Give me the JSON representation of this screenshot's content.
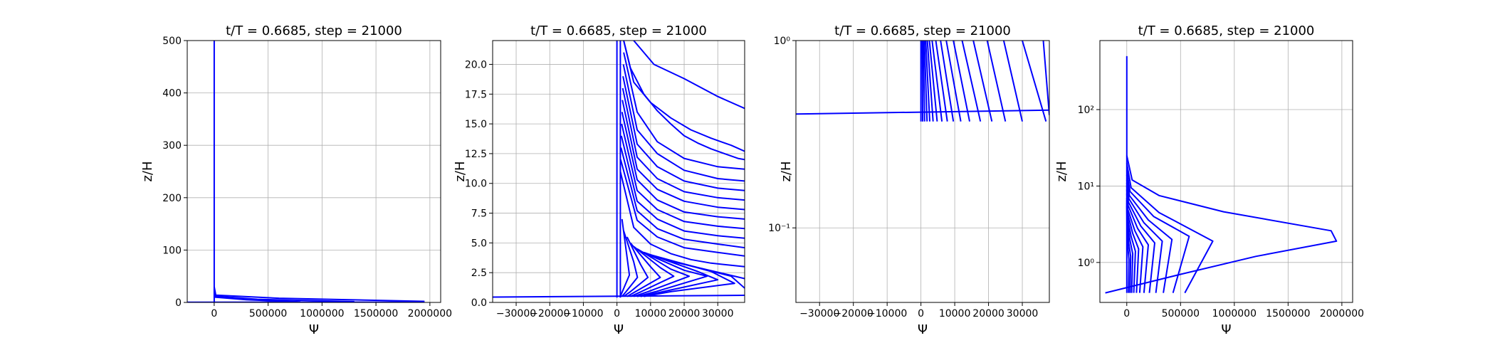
{
  "chart_data": [
    {
      "type": "line",
      "title": "t/T = 0.6685, step = 21000",
      "xlabel": "Ψ",
      "ylabel": "z/H",
      "xlim": [
        -250000,
        2100000
      ],
      "ylim": [
        0,
        500
      ],
      "yscale": "linear",
      "grid": true,
      "xticks": [
        0,
        500000,
        1000000,
        1500000,
        2000000
      ],
      "xtick_labels": [
        "0",
        "500000",
        "1000000",
        "1500000",
        "2000000"
      ],
      "yticks": [
        0,
        100,
        200,
        300,
        400,
        500
      ],
      "ytick_labels": [
        "0",
        "100",
        "200",
        "300",
        "400",
        "500"
      ],
      "color": "#0000ff",
      "series": [
        {
          "x": [
            0,
            0
          ],
          "y": [
            0.5,
            500
          ]
        },
        {
          "x": [
            -250000,
            1950000
          ],
          "y": [
            0.4,
            0.5
          ]
        },
        {
          "x": [
            0,
            15000,
            600000,
            1950000
          ],
          "y": [
            30,
            14,
            8,
            2
          ]
        },
        {
          "x": [
            0,
            10000,
            400000,
            1300000
          ],
          "y": [
            25,
            12,
            6,
            1.5
          ]
        },
        {
          "x": [
            0,
            8000,
            300000,
            800000
          ],
          "y": [
            20,
            10,
            5,
            1
          ]
        }
      ]
    },
    {
      "type": "line",
      "title": "t/T = 0.6685, step = 21000",
      "xlabel": "Ψ",
      "ylabel": "z/H",
      "xlim": [
        -37000,
        38000
      ],
      "ylim": [
        0,
        22
      ],
      "yscale": "linear",
      "grid": true,
      "xticks": [
        -30000,
        -20000,
        -10000,
        0,
        10000,
        20000,
        30000
      ],
      "xtick_labels": [
        "−30000",
        "−20000",
        "−10000",
        "0",
        "10000",
        "20000",
        "30000"
      ],
      "yticks": [
        0,
        2.5,
        5,
        7.5,
        10,
        12.5,
        15,
        17.5,
        20
      ],
      "ytick_labels": [
        "0.0",
        "2.5",
        "5.0",
        "7.5",
        "10.0",
        "12.5",
        "15.0",
        "17.5",
        "20.0"
      ],
      "color": "#0000ff",
      "series": [
        {
          "x": [
            0,
            0
          ],
          "y": [
            0.4,
            22
          ]
        },
        {
          "x": [
            -37000,
            38000
          ],
          "y": [
            0.45,
            0.6
          ]
        },
        {
          "x": [
            1000,
            1000
          ],
          "y": [
            0.4,
            22
          ]
        },
        {
          "x": [
            5000,
            11000,
            20000,
            30000,
            38000
          ],
          "y": [
            22,
            20,
            18.8,
            17.3,
            16.3
          ]
        },
        {
          "x": [
            2000,
            5000,
            10000,
            16000,
            22000,
            28000,
            34000,
            38000
          ],
          "y": [
            22,
            18.5,
            16.8,
            15.5,
            14.5,
            13.8,
            13.2,
            12.7
          ]
        },
        {
          "x": [
            2000,
            4000,
            8000,
            12000,
            16000,
            20000,
            24000,
            28000,
            32000,
            36000,
            38000
          ],
          "y": [
            22,
            19.7,
            17.5,
            16.1,
            15.0,
            14.0,
            13.4,
            12.9,
            12.5,
            12.1,
            12.0
          ]
        },
        {
          "x": [
            2000,
            6000,
            12000,
            20000,
            30000,
            38000
          ],
          "y": [
            21,
            16,
            13.5,
            12.1,
            11.4,
            11.2
          ]
        },
        {
          "x": [
            1900,
            6000,
            12000,
            20000,
            30000,
            38000
          ],
          "y": [
            20,
            14.5,
            12.5,
            11.1,
            10.4,
            10.2
          ]
        },
        {
          "x": [
            1800,
            6000,
            12000,
            20000,
            30000,
            38000
          ],
          "y": [
            19,
            13.3,
            11.4,
            10.2,
            9.6,
            9.4
          ]
        },
        {
          "x": [
            1700,
            6000,
            12000,
            20000,
            30000,
            38000
          ],
          "y": [
            18,
            12.2,
            10.4,
            9.3,
            8.8,
            8.6
          ]
        },
        {
          "x": [
            1600,
            6000,
            12000,
            20000,
            30000,
            38000
          ],
          "y": [
            17,
            11.2,
            9.5,
            8.5,
            8.0,
            7.8
          ]
        },
        {
          "x": [
            1500,
            6000,
            12000,
            20000,
            30000,
            38000
          ],
          "y": [
            16,
            10.3,
            8.6,
            7.6,
            7.2,
            7.0
          ]
        },
        {
          "x": [
            1400,
            6000,
            12000,
            20000,
            30000,
            38000
          ],
          "y": [
            15,
            9.4,
            7.8,
            6.8,
            6.4,
            6.2
          ]
        },
        {
          "x": [
            1300,
            6000,
            12000,
            20000,
            30000,
            38000
          ],
          "y": [
            14,
            8.5,
            7.0,
            6.0,
            5.6,
            5.4
          ]
        },
        {
          "x": [
            1200,
            6000,
            12000,
            20000,
            30000,
            38000
          ],
          "y": [
            13,
            7.7,
            6.2,
            5.3,
            4.9,
            4.6
          ]
        },
        {
          "x": [
            1100,
            6000,
            12000,
            20000,
            30000,
            38000
          ],
          "y": [
            12,
            6.9,
            5.5,
            4.6,
            4.2,
            3.9
          ]
        },
        {
          "x": [
            1000,
            5000,
            10000,
            16000,
            22000,
            28000,
            38000
          ],
          "y": [
            11,
            6.3,
            4.9,
            4.1,
            3.6,
            3.3,
            3.0
          ]
        },
        {
          "x": [
            1500,
            3000,
            3700,
            1600,
            1000
          ],
          "y": [
            7,
            3.8,
            2.3,
            0.9,
            0.5
          ]
        },
        {
          "x": [
            2000,
            5000,
            6100,
            2700,
            1500
          ],
          "y": [
            6,
            3.4,
            2.1,
            0.9,
            0.5
          ]
        },
        {
          "x": [
            3000,
            7000,
            9200,
            4000,
            2000
          ],
          "y": [
            5.5,
            3.2,
            2.1,
            0.9,
            0.5
          ]
        },
        {
          "x": [
            4000,
            10000,
            12900,
            5500,
            3000
          ],
          "y": [
            5,
            3.0,
            2.1,
            0.9,
            0.5
          ]
        },
        {
          "x": [
            5000,
            13000,
            16900,
            7200,
            4000
          ],
          "y": [
            4.7,
            2.9,
            2.2,
            0.9,
            0.5
          ]
        },
        {
          "x": [
            6000,
            16000,
            21500,
            9200,
            5000
          ],
          "y": [
            4.5,
            2.8,
            2.2,
            0.9,
            0.5
          ]
        },
        {
          "x": [
            7000,
            20000,
            26800,
            11500,
            6000
          ],
          "y": [
            4.3,
            2.7,
            2.2,
            0.9,
            0.5
          ]
        },
        {
          "x": [
            8000,
            24000,
            30000,
            13700,
            7000
          ],
          "y": [
            4.2,
            2.6,
            1.9,
            0.9,
            0.5
          ]
        },
        {
          "x": [
            10000,
            28000,
            35000,
            16000,
            8000
          ],
          "y": [
            4.0,
            2.6,
            1.6,
            0.9,
            0.5
          ]
        },
        {
          "x": [
            12000,
            34000,
            38000
          ],
          "y": [
            3.8,
            2.2,
            1.2
          ]
        },
        {
          "x": [
            14000,
            38000
          ],
          "y": [
            3.6,
            2.0
          ]
        }
      ]
    },
    {
      "type": "line",
      "title": "t/T = 0.6685, step = 21000",
      "xlabel": "Ψ",
      "ylabel": "z/H",
      "xlim": [
        -37000,
        38000
      ],
      "ylim": [
        0.04,
        1
      ],
      "yscale": "log",
      "grid": true,
      "xticks": [
        -30000,
        -20000,
        -10000,
        0,
        10000,
        20000,
        30000
      ],
      "xtick_labels": [
        "−30000",
        "−20000",
        "−10000",
        "0",
        "10000",
        "20000",
        "30000"
      ],
      "yticks": [
        0.1,
        1
      ],
      "ytick_labels": [
        "10⁻¹",
        "10⁰"
      ],
      "color": "#0000ff",
      "series": [
        {
          "x": [
            -37000,
            38000
          ],
          "y": [
            0.405,
            0.425
          ]
        },
        {
          "x": [
            0,
            0
          ],
          "y": [
            0.37,
            1
          ]
        },
        {
          "x": [
            500,
            400
          ],
          "y": [
            0.37,
            1
          ]
        },
        {
          "x": [
            1100,
            700
          ],
          "y": [
            0.37,
            1
          ]
        },
        {
          "x": [
            1800,
            1000
          ],
          "y": [
            0.37,
            1
          ]
        },
        {
          "x": [
            2600,
            1400
          ],
          "y": [
            0.37,
            1
          ]
        },
        {
          "x": [
            3600,
            1900
          ],
          "y": [
            0.37,
            1
          ]
        },
        {
          "x": [
            4800,
            2500
          ],
          "y": [
            0.37,
            1
          ]
        },
        {
          "x": [
            6200,
            3300
          ],
          "y": [
            0.37,
            1
          ]
        },
        {
          "x": [
            7800,
            4400
          ],
          "y": [
            0.37,
            1
          ]
        },
        {
          "x": [
            9600,
            5800
          ],
          "y": [
            0.37,
            1
          ]
        },
        {
          "x": [
            11800,
            7500
          ],
          "y": [
            0.37,
            1
          ]
        },
        {
          "x": [
            14400,
            9600
          ],
          "y": [
            0.37,
            1
          ]
        },
        {
          "x": [
            17600,
            12200
          ],
          "y": [
            0.37,
            1
          ]
        },
        {
          "x": [
            21000,
            15500
          ],
          "y": [
            0.37,
            1
          ]
        },
        {
          "x": [
            25000,
            19600
          ],
          "y": [
            0.37,
            1
          ]
        },
        {
          "x": [
            30000,
            24500
          ],
          "y": [
            0.37,
            1
          ]
        },
        {
          "x": [
            37000,
            30000
          ],
          "y": [
            0.37,
            1
          ]
        },
        {
          "x": [
            38000,
            36200
          ],
          "y": [
            0.4,
            1
          ]
        }
      ]
    },
    {
      "type": "line",
      "title": "t/T = 0.6685, step = 21000",
      "xlabel": "Ψ",
      "ylabel": "z/H",
      "xlim": [
        -250000,
        2100000
      ],
      "ylim": [
        0.3,
        800
      ],
      "yscale": "log",
      "grid": true,
      "xticks": [
        0,
        500000,
        1000000,
        1500000,
        2000000
      ],
      "xtick_labels": [
        "0",
        "500000",
        "1000000",
        "1500000",
        "2000000"
      ],
      "yticks": [
        1,
        10,
        100
      ],
      "ytick_labels": [
        "10⁰",
        "10¹",
        "10²"
      ],
      "color": "#0000ff",
      "series": [
        {
          "x": [
            0,
            0
          ],
          "y": [
            0.4,
            500
          ]
        },
        {
          "x": [
            0,
            50000,
            300000,
            900000,
            1900000,
            1950000,
            1200000,
            500000,
            -200000
          ],
          "y": [
            25,
            12,
            7.5,
            4.6,
            2.6,
            1.9,
            1.2,
            0.7,
            0.4
          ]
        },
        {
          "x": [
            0,
            40000,
            300000,
            800000,
            540000
          ],
          "y": [
            20,
            9.5,
            4.5,
            1.9,
            0.4
          ]
        },
        {
          "x": [
            0,
            30000,
            250000,
            580000,
            430000
          ],
          "y": [
            16,
            8.5,
            4.0,
            2.2,
            0.4
          ]
        },
        {
          "x": [
            0,
            25000,
            200000,
            420000,
            340000
          ],
          "y": [
            14,
            7.5,
            3.6,
            2.0,
            0.4
          ]
        },
        {
          "x": [
            0,
            20000,
            160000,
            330000,
            270000
          ],
          "y": [
            12,
            6.8,
            3.3,
            1.9,
            0.4
          ]
        },
        {
          "x": [
            0,
            15000,
            130000,
            260000,
            210000
          ],
          "y": [
            11,
            6.2,
            3.0,
            1.8,
            0.4
          ]
        },
        {
          "x": [
            0,
            12000,
            100000,
            200000,
            160000
          ],
          "y": [
            10,
            5.6,
            2.8,
            1.7,
            0.4
          ]
        },
        {
          "x": [
            0,
            9000,
            75000,
            150000,
            120000
          ],
          "y": [
            9,
            5.0,
            2.6,
            1.6,
            0.4
          ]
        },
        {
          "x": [
            0,
            7000,
            55000,
            110000,
            90000
          ],
          "y": [
            8,
            4.5,
            2.4,
            1.5,
            0.4
          ]
        },
        {
          "x": [
            0,
            5000,
            40000,
            80000,
            65000
          ],
          "y": [
            7,
            4.0,
            2.2,
            1.4,
            0.4
          ]
        },
        {
          "x": [
            0,
            3500,
            28000,
            55000,
            45000
          ],
          "y": [
            6.5,
            3.6,
            2.0,
            1.3,
            0.4
          ]
        },
        {
          "x": [
            0,
            2500,
            18000,
            36000,
            30000
          ],
          "y": [
            6,
            3.3,
            1.8,
            1.2,
            0.4
          ]
        },
        {
          "x": [
            0,
            1500,
            10000,
            20000,
            16000
          ],
          "y": [
            5.5,
            3.0,
            1.6,
            1.1,
            0.4
          ]
        }
      ]
    }
  ]
}
